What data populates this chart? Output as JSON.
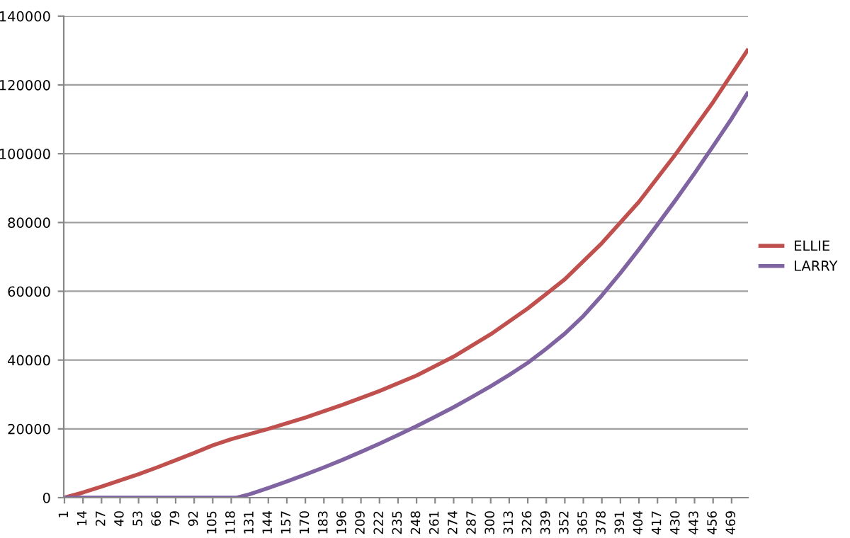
{
  "chart_data": {
    "type": "line",
    "xlim": [
      0.5,
      480.5
    ],
    "xticks": [
      1,
      14,
      27,
      40,
      53,
      66,
      79,
      92,
      105,
      118,
      131,
      144,
      157,
      170,
      183,
      196,
      209,
      222,
      235,
      248,
      261,
      274,
      287,
      300,
      313,
      326,
      339,
      352,
      365,
      378,
      391,
      404,
      417,
      430,
      443,
      456,
      469
    ],
    "ylim": [
      0,
      140000
    ],
    "yticks": [
      0,
      20000,
      40000,
      60000,
      80000,
      100000,
      120000,
      140000
    ],
    "grid": "y",
    "legend": "right",
    "marker": "none",
    "line_style": "solid",
    "series": [
      {
        "name": "ELLIE",
        "color": "#c0504d",
        "x": [
          1,
          14,
          27,
          40,
          53,
          66,
          79,
          92,
          105,
          118,
          144,
          170,
          196,
          222,
          248,
          274,
          300,
          326,
          352,
          378,
          404,
          430,
          456,
          480
        ],
        "values": [
          0,
          1500,
          3200,
          5000,
          6800,
          8800,
          10900,
          13000,
          15200,
          17000,
          20000,
          23300,
          27000,
          31000,
          35500,
          41000,
          47500,
          55000,
          63500,
          74000,
          86000,
          100000,
          115000,
          130000
        ]
      },
      {
        "name": "LARRY",
        "color": "#8064a2",
        "x": [
          1,
          122,
          131,
          144,
          157,
          170,
          183,
          196,
          209,
          222,
          235,
          248,
          261,
          274,
          287,
          300,
          313,
          326,
          339,
          352,
          365,
          378,
          391,
          404,
          417,
          430,
          443,
          456,
          469,
          480
        ],
        "values": [
          0,
          0,
          1000,
          2800,
          4700,
          6700,
          8800,
          11000,
          13300,
          15700,
          18200,
          20800,
          23500,
          26300,
          29300,
          32400,
          35700,
          39200,
          43300,
          47700,
          52800,
          58800,
          65300,
          72200,
          79400,
          86700,
          94300,
          102200,
          110200,
          117500
        ]
      }
    ]
  }
}
